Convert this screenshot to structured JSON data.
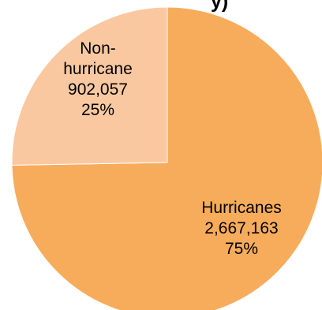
{
  "chart_data": {
    "type": "pie",
    "title_visible_fragment": "y)",
    "categories": [
      "Hurricanes",
      "Non-hurricane"
    ],
    "values": [
      2667163,
      902057
    ],
    "value_labels": [
      "2,667,163",
      "902,057"
    ],
    "percent_labels": [
      "75%",
      "25%"
    ],
    "label_lines": [
      [
        "Hurricanes",
        "2,667,163",
        "75%"
      ],
      [
        "Non-",
        "hurricane",
        "902,057",
        "25%"
      ]
    ],
    "colors": [
      "#F7AC5C",
      "#FAC8A0"
    ],
    "start_angle_deg": 0,
    "direction": "clockwise",
    "legend": "none",
    "data_labels": "inside"
  }
}
